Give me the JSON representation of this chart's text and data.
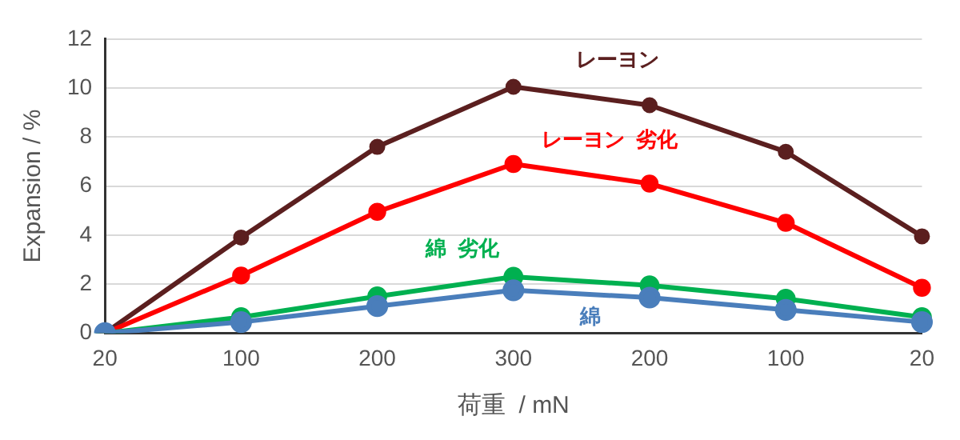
{
  "chart_data": {
    "type": "line",
    "xlabel": "荷重  / mN",
    "ylabel": "Expansion / %",
    "categories": [
      "20",
      "100",
      "200",
      "300",
      "200",
      "100",
      "20"
    ],
    "series": [
      {
        "name": "レーヨン",
        "color": "#5b1f1f",
        "values": [
          0,
          3.9,
          7.6,
          10.05,
          9.3,
          7.4,
          3.95
        ]
      },
      {
        "name": "レーヨン  劣化",
        "color": "#ff0000",
        "values": [
          0,
          2.35,
          4.95,
          6.9,
          6.1,
          4.5,
          1.85
        ]
      },
      {
        "name": "綿  劣化",
        "color": "#00b050",
        "values": [
          0,
          0.65,
          1.5,
          2.3,
          1.95,
          1.4,
          0.65
        ]
      },
      {
        "name": "綿",
        "color": "#4a7ebb",
        "values": [
          0,
          0.45,
          1.1,
          1.75,
          1.45,
          0.95,
          0.45
        ]
      }
    ],
    "ylim": [
      0,
      12
    ],
    "yticks": [
      0,
      2,
      4,
      6,
      8,
      10,
      12
    ],
    "grid": "y",
    "legend": false,
    "marker": "circle",
    "line_style": "solid"
  }
}
